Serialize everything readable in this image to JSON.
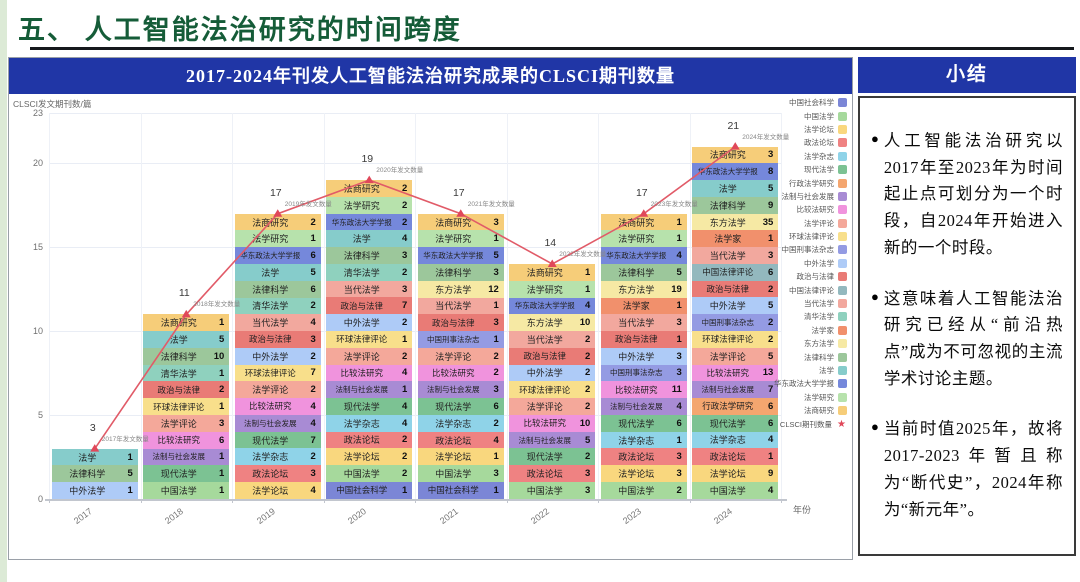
{
  "page": {
    "title": "五、 人工智能法治研究的时间跨度"
  },
  "chart": {
    "header": "2017-2024年刊发人工智能法治研究成果的CLSCI期刊数量",
    "y_axis_title": "CLSCI发文期刊数/篇",
    "x_axis_title": "年份"
  },
  "chart_data": {
    "type": "bar",
    "subtype": "stacked-bar-with-line",
    "title": "2017-2024年刊发人工智能法治研究成果的CLSCI期刊数量",
    "xlabel": "年份",
    "ylabel": "CLSCI发文期刊数/篇",
    "ylim": [
      0,
      23
    ],
    "y_ticks": [
      0,
      5,
      10,
      15,
      20,
      23
    ],
    "grid": true,
    "legend_position": "right",
    "categories": [
      "2017",
      "2018",
      "2019",
      "2020",
      "2021",
      "2022",
      "2023",
      "2024"
    ],
    "line_series": {
      "name": "CLSCI期刊数量",
      "values": [
        3,
        11,
        17,
        19,
        17,
        14,
        17,
        21
      ]
    },
    "years": [
      {
        "year": "2017",
        "total": 3,
        "annotation": "2017年发文数量",
        "segments": [
          {
            "journal": "法学",
            "value": 1
          },
          {
            "journal": "法律科学",
            "value": 5
          },
          {
            "journal": "中外法学",
            "value": 1
          }
        ]
      },
      {
        "year": "2018",
        "total": 11,
        "annotation": "2018年发文数量",
        "segments": [
          {
            "journal": "法商研究",
            "value": 1
          },
          {
            "journal": "法学",
            "value": 5
          },
          {
            "journal": "法律科学",
            "value": 10
          },
          {
            "journal": "清华法学",
            "value": 1
          },
          {
            "journal": "政治与法律",
            "value": 2
          },
          {
            "journal": "环球法律评论",
            "value": 1
          },
          {
            "journal": "法学评论",
            "value": 3
          },
          {
            "journal": "比较法研究",
            "value": 6
          },
          {
            "journal": "法制与社会发展",
            "value": 1
          },
          {
            "journal": "现代法学",
            "value": 1
          },
          {
            "journal": "中国法学",
            "value": 1
          }
        ]
      },
      {
        "year": "2019",
        "total": 17,
        "annotation": "2019年发文数量",
        "segments": [
          {
            "journal": "法商研究",
            "value": 2
          },
          {
            "journal": "法学研究",
            "value": 1
          },
          {
            "journal": "华东政法大学学报",
            "value": 6
          },
          {
            "journal": "法学",
            "value": 5
          },
          {
            "journal": "法律科学",
            "value": 6
          },
          {
            "journal": "清华法学",
            "value": 2
          },
          {
            "journal": "当代法学",
            "value": 4
          },
          {
            "journal": "政治与法律",
            "value": 3
          },
          {
            "journal": "中外法学",
            "value": 2
          },
          {
            "journal": "环球法律评论",
            "value": 7
          },
          {
            "journal": "法学评论",
            "value": 2
          },
          {
            "journal": "比较法研究",
            "value": 4
          },
          {
            "journal": "法制与社会发展",
            "value": 4
          },
          {
            "journal": "现代法学",
            "value": 7
          },
          {
            "journal": "法学杂志",
            "value": 2
          },
          {
            "journal": "政法论坛",
            "value": 3
          },
          {
            "journal": "法学论坛",
            "value": 4
          }
        ]
      },
      {
        "year": "2020",
        "total": 19,
        "annotation": "2020年发文数量",
        "segments": [
          {
            "journal": "法商研究",
            "value": 2
          },
          {
            "journal": "法学研究",
            "value": 2
          },
          {
            "journal": "华东政法大学学报",
            "value": 2
          },
          {
            "journal": "法学",
            "value": 4
          },
          {
            "journal": "法律科学",
            "value": 3
          },
          {
            "journal": "清华法学",
            "value": 2
          },
          {
            "journal": "当代法学",
            "value": 3
          },
          {
            "journal": "政治与法律",
            "value": 7
          },
          {
            "journal": "中外法学",
            "value": 2
          },
          {
            "journal": "环球法律评论",
            "value": 1
          },
          {
            "journal": "法学评论",
            "value": 2
          },
          {
            "journal": "比较法研究",
            "value": 4
          },
          {
            "journal": "法制与社会发展",
            "value": 1
          },
          {
            "journal": "现代法学",
            "value": 4
          },
          {
            "journal": "法学杂志",
            "value": 4
          },
          {
            "journal": "政法论坛",
            "value": 2
          },
          {
            "journal": "法学论坛",
            "value": 2
          },
          {
            "journal": "中国法学",
            "value": 2
          },
          {
            "journal": "中国社会科学",
            "value": 1
          }
        ]
      },
      {
        "year": "2021",
        "total": 17,
        "annotation": "2021年发文数量",
        "segments": [
          {
            "journal": "法商研究",
            "value": 3
          },
          {
            "journal": "法学研究",
            "value": 1
          },
          {
            "journal": "华东政法大学学报",
            "value": 5
          },
          {
            "journal": "法律科学",
            "value": 3
          },
          {
            "journal": "东方法学",
            "value": 12
          },
          {
            "journal": "当代法学",
            "value": 1
          },
          {
            "journal": "政治与法律",
            "value": 3
          },
          {
            "journal": "中国刑事法杂志",
            "value": 1
          },
          {
            "journal": "法学评论",
            "value": 2
          },
          {
            "journal": "比较法研究",
            "value": 2
          },
          {
            "journal": "法制与社会发展",
            "value": 3
          },
          {
            "journal": "现代法学",
            "value": 6
          },
          {
            "journal": "法学杂志",
            "value": 2
          },
          {
            "journal": "政法论坛",
            "value": 4
          },
          {
            "journal": "法学论坛",
            "value": 1
          },
          {
            "journal": "中国法学",
            "value": 3
          },
          {
            "journal": "中国社会科学",
            "value": 1
          }
        ]
      },
      {
        "year": "2022",
        "total": 14,
        "annotation": "2022年发文数量",
        "segments": [
          {
            "journal": "法商研究",
            "value": 1
          },
          {
            "journal": "法学研究",
            "value": 1
          },
          {
            "journal": "华东政法大学学报",
            "value": 4
          },
          {
            "journal": "东方法学",
            "value": 10
          },
          {
            "journal": "当代法学",
            "value": 2
          },
          {
            "journal": "政治与法律",
            "value": 2
          },
          {
            "journal": "中外法学",
            "value": 2
          },
          {
            "journal": "环球法律评论",
            "value": 2
          },
          {
            "journal": "法学评论",
            "value": 2
          },
          {
            "journal": "比较法研究",
            "value": 10
          },
          {
            "journal": "法制与社会发展",
            "value": 5
          },
          {
            "journal": "现代法学",
            "value": 2
          },
          {
            "journal": "政法论坛",
            "value": 3
          },
          {
            "journal": "中国法学",
            "value": 3
          }
        ]
      },
      {
        "year": "2023",
        "total": 17,
        "annotation": "2023年发文数量",
        "segments": [
          {
            "journal": "法商研究",
            "value": 1
          },
          {
            "journal": "法学研究",
            "value": 1
          },
          {
            "journal": "华东政法大学学报",
            "value": 4
          },
          {
            "journal": "法律科学",
            "value": 5
          },
          {
            "journal": "东方法学",
            "value": 19
          },
          {
            "journal": "法学家",
            "value": 1
          },
          {
            "journal": "当代法学",
            "value": 3
          },
          {
            "journal": "政治与法律",
            "value": 1
          },
          {
            "journal": "中外法学",
            "value": 3
          },
          {
            "journal": "中国刑事法杂志",
            "value": 3
          },
          {
            "journal": "比较法研究",
            "value": 11
          },
          {
            "journal": "法制与社会发展",
            "value": 4
          },
          {
            "journal": "现代法学",
            "value": 6
          },
          {
            "journal": "法学杂志",
            "value": 1
          },
          {
            "journal": "政法论坛",
            "value": 3
          },
          {
            "journal": "法学论坛",
            "value": 3
          },
          {
            "journal": "中国法学",
            "value": 2
          }
        ]
      },
      {
        "year": "2024",
        "total": 21,
        "annotation": "2024年发文数量",
        "segments": [
          {
            "journal": "法商研究",
            "value": 3
          },
          {
            "journal": "华东政法大学学报",
            "value": 8
          },
          {
            "journal": "法学",
            "value": 5
          },
          {
            "journal": "法律科学",
            "value": 9
          },
          {
            "journal": "东方法学",
            "value": 35
          },
          {
            "journal": "法学家",
            "value": 1
          },
          {
            "journal": "当代法学",
            "value": 3
          },
          {
            "journal": "中国法律评论",
            "value": 6
          },
          {
            "journal": "政治与法律",
            "value": 2
          },
          {
            "journal": "中外法学",
            "value": 5
          },
          {
            "journal": "中国刑事法杂志",
            "value": 2
          },
          {
            "journal": "环球法律评论",
            "value": 2
          },
          {
            "journal": "法学评论",
            "value": 5
          },
          {
            "journal": "比较法研究",
            "value": 13
          },
          {
            "journal": "法制与社会发展",
            "value": 7
          },
          {
            "journal": "行政法学研究",
            "value": 6
          },
          {
            "journal": "现代法学",
            "value": 6
          },
          {
            "journal": "法学杂志",
            "value": 4
          },
          {
            "journal": "政法论坛",
            "value": 1
          },
          {
            "journal": "法学论坛",
            "value": 9
          },
          {
            "journal": "中国法学",
            "value": 4
          }
        ]
      }
    ]
  },
  "legend": {
    "items": [
      "中国社会科学",
      "中国法学",
      "法学论坛",
      "政法论坛",
      "法学杂志",
      "现代法学",
      "行政法学研究",
      "法制与社会发展",
      "比较法研究",
      "法学评论",
      "环球法律评论",
      "中国刑事法杂志",
      "中外法学",
      "政治与法律",
      "中国法律评论",
      "当代法学",
      "清华法学",
      "法学家",
      "东方法学",
      "法律科学",
      "法学",
      "华东政法大学学报",
      "法学研究",
      "法商研究"
    ],
    "line_item": "CLSCI期刊数量"
  },
  "legend_colors": {
    "中国社会科学": "#7b86d6",
    "中国法学": "#a6d99c",
    "法学论坛": "#f9d77e",
    "政法论坛": "#ef8282",
    "法学杂志": "#8fd3e8",
    "现代法学": "#7cc293",
    "行政法学研究": "#f4a66f",
    "法制与社会发展": "#a88bd4",
    "比较法研究": "#f093dd",
    "法学评论": "#f4a89a",
    "环球法律评论": "#f8df8b",
    "中国刑事法杂志": "#949be3",
    "中外法学": "#aecbf7",
    "政治与法律": "#e97b76",
    "中国法律评论": "#93b8be",
    "当代法学": "#f2a89e",
    "清华法学": "#8fd1be",
    "法学家": "#f1906c",
    "东方法学": "#f6e9a4",
    "法律科学": "#9cc79b",
    "法学": "#86cccb",
    "华东政法大学学报": "#7588db",
    "法学研究": "#b7e2ac",
    "法商研究": "#f6cd79",
    "CLSCI期刊数量": "#e0485a"
  },
  "line_color": "#e15b68",
  "summary": {
    "header": "小结",
    "bullets": [
      "人工智能法治研究以2017年至2023年为时间起止点可划分为一个时段，自2024年开始进入新的一个时段。",
      "这意味着人工智能法治研究已经从“前沿热点”成为不可忽视的主流学术讨论主题。",
      "当前时值2025年，故将2017-2023年暂且称为“断代史”，2024年称为“新元年”。"
    ]
  }
}
